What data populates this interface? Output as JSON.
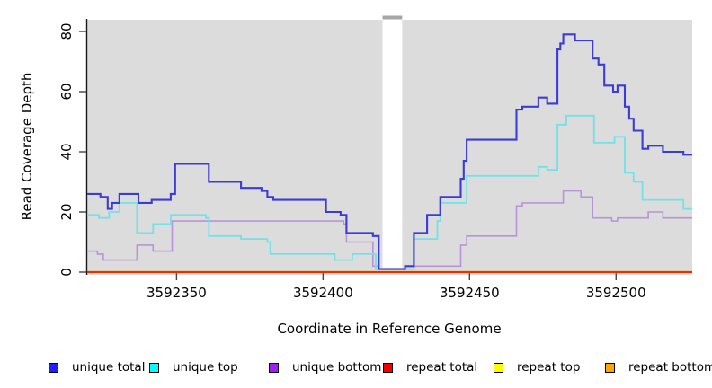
{
  "chart_data": {
    "type": "line",
    "subtype": "step-after-coverage-plot",
    "title": "",
    "xlabel": "Coordinate in Reference Genome",
    "ylabel": "Read Coverage Depth",
    "xlim": [
      3592319.5,
      3592526
    ],
    "ylim": [
      0,
      80
    ],
    "x_ticks": [
      3592350,
      3592400,
      3592450,
      3592500
    ],
    "y_ticks": [
      0,
      20,
      40,
      60,
      80
    ],
    "plot_background": "#dcdcdc",
    "grid": "off",
    "legend_position": "bottom",
    "gap_region": {
      "x_start": 3592420.3,
      "x_end": 3592427.0,
      "fill": "#ffffff",
      "cap_color": "#a6a6a6"
    },
    "series": [
      {
        "name": "unique total",
        "line_color": "#3b3bd6",
        "swatch_color": "#1f1fff",
        "line_width": 2.1,
        "steps": [
          [
            3592319.5,
            26
          ],
          [
            3592324,
            25
          ],
          [
            3592326.5,
            21
          ],
          [
            3592328,
            23
          ],
          [
            3592330.5,
            26
          ],
          [
            3592337,
            23
          ],
          [
            3592341.5,
            24
          ],
          [
            3592348,
            26
          ],
          [
            3592349.5,
            36
          ],
          [
            3592361,
            30
          ],
          [
            3592372,
            28
          ],
          [
            3592379,
            27
          ],
          [
            3592381,
            25
          ],
          [
            3592383,
            24
          ],
          [
            3592401,
            20
          ],
          [
            3592406,
            19
          ],
          [
            3592408,
            13
          ],
          [
            3592417,
            12
          ],
          [
            3592419,
            1
          ],
          [
            3592428,
            2
          ],
          [
            3592431,
            13
          ],
          [
            3592435.5,
            19
          ],
          [
            3592440,
            25
          ],
          [
            3592447,
            31
          ],
          [
            3592448,
            37
          ],
          [
            3592449,
            44
          ],
          [
            3592466,
            54
          ],
          [
            3592468,
            55
          ],
          [
            3592473.5,
            58
          ],
          [
            3592476.5,
            56
          ],
          [
            3592480,
            74
          ],
          [
            3592481,
            76
          ],
          [
            3592482,
            79
          ],
          [
            3592486,
            77
          ],
          [
            3592492,
            71
          ],
          [
            3592494,
            69
          ],
          [
            3592496,
            62
          ],
          [
            3592499,
            60
          ],
          [
            3592500.5,
            62
          ],
          [
            3592503,
            55
          ],
          [
            3592504.5,
            51
          ],
          [
            3592506,
            47
          ],
          [
            3592509,
            41
          ],
          [
            3592511,
            42
          ],
          [
            3592516,
            40
          ],
          [
            3592523,
            39
          ]
        ]
      },
      {
        "name": "unique top",
        "line_color": "#70e2e8",
        "swatch_color": "#00ffff",
        "line_width": 1.8,
        "steps": [
          [
            3592319.5,
            19
          ],
          [
            3592323.5,
            18
          ],
          [
            3592327,
            20
          ],
          [
            3592330.5,
            23
          ],
          [
            3592336.5,
            13
          ],
          [
            3592342,
            16
          ],
          [
            3592348,
            19
          ],
          [
            3592360,
            18
          ],
          [
            3592361,
            12
          ],
          [
            3592372,
            11
          ],
          [
            3592381,
            10
          ],
          [
            3592382,
            6
          ],
          [
            3592404,
            4
          ],
          [
            3592410,
            6
          ],
          [
            3592418,
            1
          ],
          [
            3592431,
            11
          ],
          [
            3592439,
            17
          ],
          [
            3592440,
            23
          ],
          [
            3592449,
            32
          ],
          [
            3592473.5,
            35
          ],
          [
            3592476.5,
            34
          ],
          [
            3592480,
            49
          ],
          [
            3592483,
            52
          ],
          [
            3592492.5,
            43
          ],
          [
            3592499.5,
            45
          ],
          [
            3592503,
            33
          ],
          [
            3592506,
            30
          ],
          [
            3592509,
            24
          ],
          [
            3592523,
            21
          ]
        ]
      },
      {
        "name": "unique bottom",
        "line_color": "#b993da",
        "swatch_color": "#a020f0",
        "line_width": 1.6,
        "steps": [
          [
            3592319.5,
            7
          ],
          [
            3592323,
            6
          ],
          [
            3592325,
            4
          ],
          [
            3592336.5,
            9
          ],
          [
            3592342,
            7
          ],
          [
            3592348.5,
            17
          ],
          [
            3592407,
            16
          ],
          [
            3592408,
            10
          ],
          [
            3592417,
            2
          ],
          [
            3592419,
            1
          ],
          [
            3592428,
            2
          ],
          [
            3592447,
            9
          ],
          [
            3592449,
            12
          ],
          [
            3592466,
            22
          ],
          [
            3592468,
            23
          ],
          [
            3592482,
            27
          ],
          [
            3592488,
            25
          ],
          [
            3592492,
            18
          ],
          [
            3592498.5,
            17
          ],
          [
            3592500.5,
            18
          ],
          [
            3592511,
            20
          ],
          [
            3592516,
            18
          ]
        ]
      },
      {
        "name": "repeat total",
        "line_color": "#e00000",
        "swatch_color": "#f00000",
        "line_width": 1.6,
        "steps": [
          [
            3592319.5,
            0
          ]
        ]
      },
      {
        "name": "repeat top",
        "line_color": "#f5e100",
        "swatch_color": "#ffff00",
        "line_width": 1.6,
        "steps": [
          [
            3592319.5,
            0
          ]
        ]
      },
      {
        "name": "repeat bottom",
        "line_color": "#ff9b1e",
        "swatch_color": "#ffa500",
        "line_width": 2.6,
        "steps": [
          [
            3592319.5,
            0
          ]
        ]
      }
    ]
  }
}
